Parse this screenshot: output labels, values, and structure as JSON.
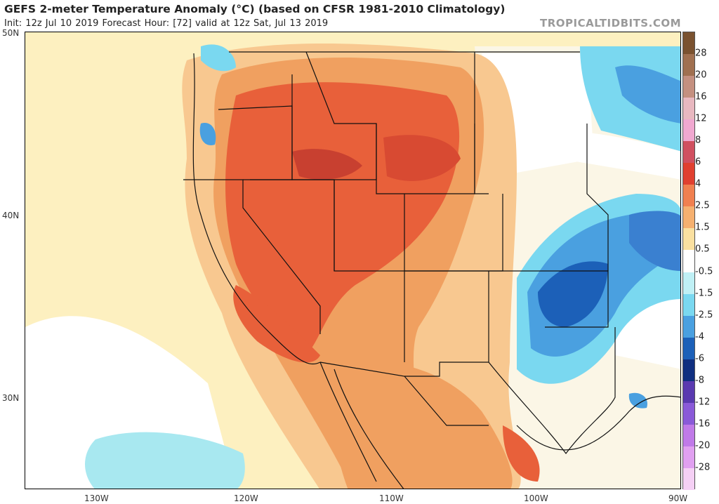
{
  "title": "GEFS 2-meter Temperature Anomaly (°C) (based on CFSR 1981-2010 Climatology)",
  "subtitle": "Init: 12z Jul 10 2019   Forecast Hour: [72]   valid at 12z Sat, Jul 13 2019",
  "brand": "TROPICALTIDBITS.COM",
  "latitude_labels": [
    "50N",
    "40N",
    "30N"
  ],
  "longitude_labels": [
    "130W",
    "120W",
    "110W",
    "100W",
    "90W"
  ],
  "colorbar": {
    "labels": [
      "28",
      "20",
      "16",
      "12",
      "8",
      "6",
      "4",
      "2.5",
      "1.5",
      "0.5",
      "-0.5",
      "-1.5",
      "-2.5",
      "-4",
      "-6",
      "-8",
      "-12",
      "-16",
      "-20",
      "-28"
    ],
    "colors": [
      "#7a5230",
      "#a07050",
      "#c49080",
      "#e8b8c0",
      "#f0a8d0",
      "#d05060",
      "#e04030",
      "#f08050",
      "#f5b070",
      "#fae0a0",
      "#ffffff",
      "#bff0f5",
      "#7ad8f0",
      "#4aa0e0",
      "#1c60b8",
      "#102f80",
      "#5a3ab0",
      "#8a5ad8",
      "#c07ae8",
      "#e0a0f0",
      "#f5d0f5"
    ]
  }
}
